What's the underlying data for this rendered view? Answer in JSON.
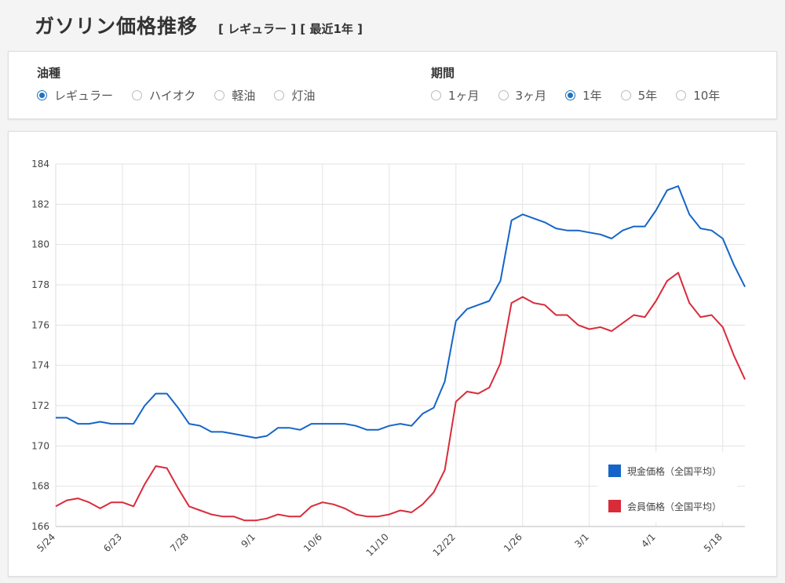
{
  "header": {
    "title": "ガソリン価格推移",
    "subtitle": "[ レギュラー ] [ 最近1年 ]"
  },
  "filters": {
    "fuel": {
      "label": "油種",
      "options": [
        {
          "label": "レギュラー",
          "checked": true
        },
        {
          "label": "ハイオク",
          "checked": false
        },
        {
          "label": "軽油",
          "checked": false
        },
        {
          "label": "灯油",
          "checked": false
        }
      ]
    },
    "period": {
      "label": "期間",
      "options": [
        {
          "label": "1ヶ月",
          "checked": false
        },
        {
          "label": "3ヶ月",
          "checked": false
        },
        {
          "label": "1年",
          "checked": true
        },
        {
          "label": "5年",
          "checked": false
        },
        {
          "label": "10年",
          "checked": false
        }
      ]
    }
  },
  "colors": {
    "accent": "#1e73be",
    "cash_series": "#1565c8",
    "member_series": "#d92b3a",
    "grid": "#e3e3e3"
  },
  "chart_data": {
    "type": "line",
    "title": "",
    "xlabel": "",
    "ylabel": "",
    "ylim": [
      166,
      184
    ],
    "yticks": [
      166,
      168,
      170,
      172,
      174,
      176,
      178,
      180,
      182,
      184
    ],
    "grid": true,
    "legend_position": "bottom-right",
    "x_tick_labels": [
      "5/24",
      "6/23",
      "7/28",
      "9/1",
      "10/6",
      "11/10",
      "12/22",
      "1/26",
      "3/1",
      "4/1",
      "5/18"
    ],
    "x_tick_index": [
      0,
      6,
      12,
      18,
      24,
      30,
      36,
      42,
      48,
      54,
      60
    ],
    "series": [
      {
        "name": "現金価格（全国平均）",
        "color": "#1565c8",
        "values": [
          171.4,
          171.4,
          171.1,
          171.1,
          171.2,
          171.1,
          171.1,
          171.1,
          172.0,
          172.6,
          172.6,
          171.9,
          171.1,
          171.0,
          170.7,
          170.7,
          170.6,
          170.5,
          170.4,
          170.5,
          170.9,
          170.9,
          170.8,
          171.1,
          171.1,
          171.1,
          171.1,
          171.0,
          170.8,
          170.8,
          171.0,
          171.1,
          171.0,
          171.6,
          171.9,
          173.2,
          176.2,
          176.8,
          177.0,
          177.2,
          178.2,
          181.2,
          181.5,
          181.3,
          181.1,
          180.8,
          180.7,
          180.7,
          180.6,
          180.5,
          180.3,
          180.7,
          180.9,
          180.9,
          181.7,
          182.7,
          182.9,
          181.5,
          180.8,
          180.7,
          180.3,
          179.0,
          177.9
        ]
      },
      {
        "name": "会員価格（全国平均）",
        "color": "#d92b3a",
        "values": [
          167.0,
          167.3,
          167.4,
          167.2,
          166.9,
          167.2,
          167.2,
          167.0,
          168.1,
          169.0,
          168.9,
          167.9,
          167.0,
          166.8,
          166.6,
          166.5,
          166.5,
          166.3,
          166.3,
          166.4,
          166.6,
          166.5,
          166.5,
          167.0,
          167.2,
          167.1,
          166.9,
          166.6,
          166.5,
          166.5,
          166.6,
          166.8,
          166.7,
          167.1,
          167.7,
          168.8,
          172.2,
          172.7,
          172.6,
          172.9,
          174.1,
          177.1,
          177.4,
          177.1,
          177.0,
          176.5,
          176.5,
          176.0,
          175.8,
          175.9,
          175.7,
          176.1,
          176.5,
          176.4,
          177.2,
          178.2,
          178.6,
          177.1,
          176.4,
          176.5,
          175.9,
          174.5,
          173.3
        ]
      }
    ]
  }
}
